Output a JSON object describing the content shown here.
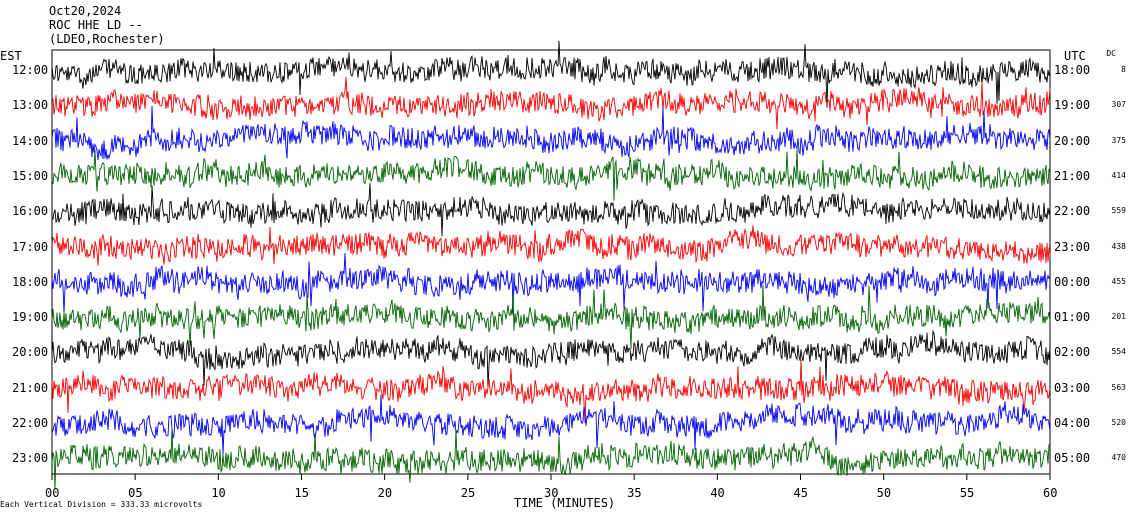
{
  "header": {
    "date": "Oct20,2024",
    "station": "ROC HHE LD --",
    "location": "(LDEO,Rochester)"
  },
  "chart_data": {
    "type": "line",
    "left_timezone_label": "EST",
    "right_timezone_label": "UTC",
    "dc_label": "DC",
    "xlabel": "TIME (MINUTES)",
    "xlim": [
      0,
      60
    ],
    "x_ticks": [
      "00",
      "05",
      "10",
      "15",
      "20",
      "25",
      "30",
      "35",
      "40",
      "45",
      "50",
      "55",
      "60"
    ],
    "left_hours": [
      "12:00",
      "13:00",
      "14:00",
      "15:00",
      "16:00",
      "17:00",
      "18:00",
      "19:00",
      "20:00",
      "21:00",
      "22:00",
      "23:00"
    ],
    "right_hours": [
      "18:00",
      "19:00",
      "20:00",
      "21:00",
      "22:00",
      "23:00",
      "00:00",
      "01:00",
      "02:00",
      "03:00",
      "04:00",
      "05:00"
    ],
    "dc_values": [
      "8",
      "307",
      "375",
      "414",
      "559",
      "438",
      "455",
      "201",
      "554",
      "563",
      "520",
      "470"
    ],
    "trace_colors": [
      "#000000",
      "#ff0000",
      "#0000ff",
      "#006400"
    ],
    "footnote": "Each Vertical Division =  333.33 microvolts"
  }
}
